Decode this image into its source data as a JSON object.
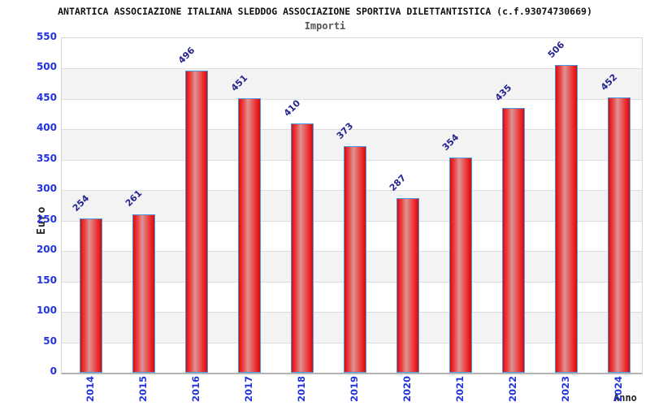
{
  "chart_data": {
    "type": "bar",
    "title": "ANTARTICA ASSOCIAZIONE ITALIANA SLEDDOG ASSOCIAZIONE SPORTIVA DILETTANTISTICA (c.f.93074730669)",
    "subtitle": "Importi",
    "xlabel": "Anno",
    "ylabel": "Euro",
    "categories": [
      "2014",
      "2015",
      "2016",
      "2017",
      "2018",
      "2019",
      "2020",
      "2021",
      "2022",
      "2023",
      "2024"
    ],
    "values": [
      254,
      261,
      496,
      451,
      410,
      373,
      287,
      354,
      435,
      506,
      452
    ],
    "ylim": [
      0,
      550
    ],
    "yticks": [
      0,
      50,
      100,
      150,
      200,
      250,
      300,
      350,
      400,
      450,
      500,
      550
    ],
    "grid": "horizontal-bands-alternating",
    "legend": "none",
    "colors": {
      "bar_edge_red": "#c51212",
      "bar_bright_red": "#ee2020",
      "bar_center_pink": "#dd9494",
      "bar_border_blue": "#4a97e0",
      "tick_label_blue": "#2233dd",
      "value_label_navy": "#24248f",
      "band_gray": "#f3f3f3",
      "gridline_gray": "#dddddd"
    }
  }
}
